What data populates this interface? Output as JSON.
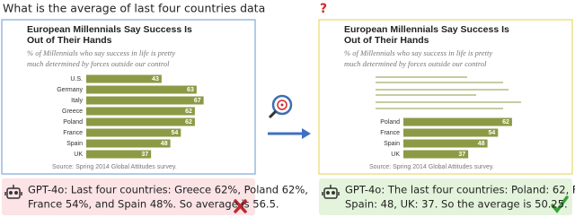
{
  "question": {
    "text": "What is the average of last four countries data",
    "mark": "?"
  },
  "left_panel": {
    "title_lines": [
      "European Millennials Say Success Is",
      "Out of Their Hands"
    ],
    "subtitle_lines": [
      "% of Millennials who say success in life is pretty",
      "much determined by forces outside our control"
    ],
    "categories": [
      "U.S.",
      "Germany",
      "Italy",
      "Greece",
      "Poland",
      "France",
      "Spain",
      "UK"
    ],
    "values": [
      43,
      63,
      67,
      62,
      62,
      54,
      48,
      37
    ],
    "source": "Source: Spring 2014 Global Attitudes survey."
  },
  "right_panel": {
    "title_lines": [
      "European Millennials Say Success Is",
      "Out of Their Hands"
    ],
    "subtitle_lines": [
      "% of Millennials who say success in life is pretty",
      "much determined by forces outside our control"
    ],
    "categories": [
      "Poland",
      "France",
      "Spain",
      "UK"
    ],
    "values": [
      62,
      54,
      48,
      37
    ],
    "source": "Source: Spring 2014 Global Attitudes survey."
  },
  "left_answer": {
    "lines": [
      "GPT-4o: Last four countries: Greece 62%, Poland 62%,",
      "France 54%, and Spain 48%. So average is 56.5."
    ]
  },
  "right_answer": {
    "lines": [
      "GPT-4o: The last four countries: Poland: 62, France: 54,",
      "Spain: 48, UK: 37. So the average is 50.25."
    ]
  }
}
